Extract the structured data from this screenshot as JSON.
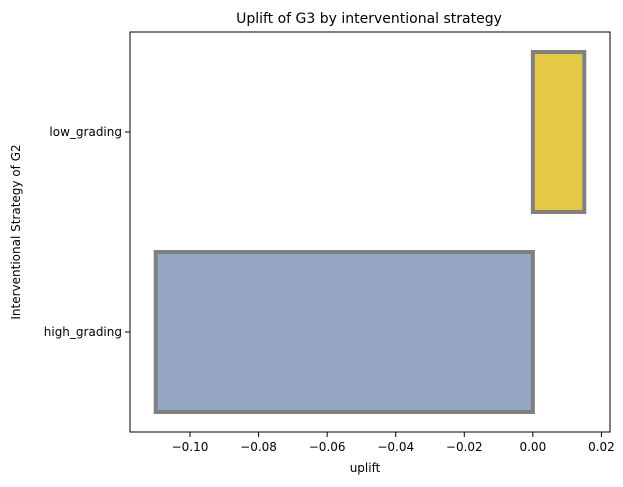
{
  "chart_data": {
    "type": "bar",
    "orientation": "horizontal",
    "title": "Uplift of G3 by interventional strategy",
    "xlabel": "uplift",
    "ylabel": "Interventional Strategy of G2",
    "categories": [
      "low_grading",
      "high_grading"
    ],
    "values": [
      0.015,
      -0.11
    ],
    "colors": [
      "#e5c946",
      "#94a4c3"
    ],
    "edge_color": "#808080",
    "xlim": [
      -0.1175,
      0.0225
    ],
    "xticks": [
      -0.1,
      -0.08,
      -0.06,
      -0.04,
      -0.02,
      0.0,
      0.02
    ],
    "xtick_labels": [
      "−0.10",
      "−0.08",
      "−0.06",
      "−0.04",
      "−0.02",
      "0.00",
      "0.02"
    ],
    "grid": false,
    "legend": "none"
  }
}
